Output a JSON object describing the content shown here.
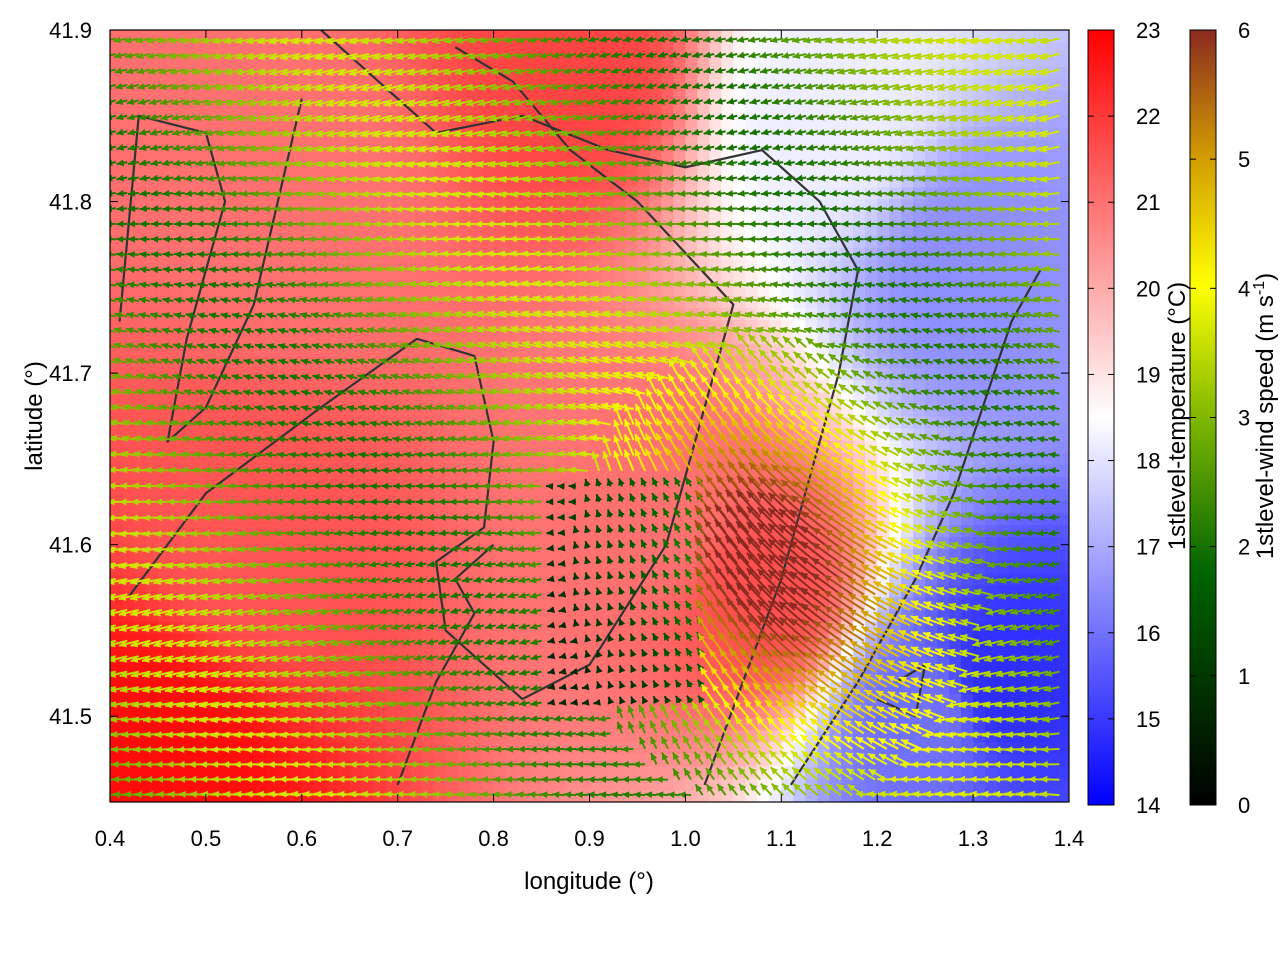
{
  "chart_data": {
    "type": "heatmap",
    "xlabel": "longitude (°)",
    "ylabel": "latitude (°)",
    "xlim": [
      0.4,
      1.4
    ],
    "ylim": [
      41.45,
      41.9
    ],
    "x_ticks": [
      "0.4",
      "0.5",
      "0.6",
      "0.7",
      "0.8",
      "0.9",
      "1.0",
      "1.1",
      "1.2",
      "1.3",
      "1.4"
    ],
    "y_ticks": [
      "41.5",
      "41.6",
      "41.7",
      "41.8",
      "41.9"
    ],
    "grid": false,
    "temperature": {
      "label": "1stlevel-temperature (°C)",
      "range": [
        14,
        23
      ],
      "ticks": [
        "14",
        "15",
        "16",
        "17",
        "18",
        "19",
        "20",
        "21",
        "22",
        "23"
      ],
      "colors": [
        "#0000ff",
        "#ffffff",
        "#ff0000"
      ],
      "field_samples": [
        {
          "lon": 0.45,
          "lat": 41.48,
          "value": 22.8
        },
        {
          "lon": 0.55,
          "lat": 41.6,
          "value": 21.5
        },
        {
          "lon": 0.6,
          "lat": 41.8,
          "value": 21.0
        },
        {
          "lon": 0.88,
          "lat": 41.88,
          "value": 21.8
        },
        {
          "lon": 0.97,
          "lat": 41.62,
          "value": 21.0
        },
        {
          "lon": 1.08,
          "lat": 41.57,
          "value": 21.6
        },
        {
          "lon": 1.15,
          "lat": 41.85,
          "value": 18.2
        },
        {
          "lon": 1.3,
          "lat": 41.76,
          "value": 16.5
        },
        {
          "lon": 1.33,
          "lat": 41.52,
          "value": 14.8
        },
        {
          "lon": 1.25,
          "lat": 41.5,
          "value": 16.0
        }
      ]
    },
    "wind": {
      "label": "1stlevel-wind speed (m s-1)",
      "label_main": "1stlevel-wind speed (m s",
      "label_sup": "-1",
      "label_end": ")",
      "range": [
        0,
        6
      ],
      "ticks": [
        "0",
        "1",
        "2",
        "3",
        "4",
        "5",
        "6"
      ],
      "colors": [
        "#000000",
        "#006400",
        "#7fb800",
        "#ffff00",
        "#d4a000",
        "#8b2a20"
      ],
      "dominant_direction": "from east (arrows point west)",
      "max_region": {
        "lon": 1.1,
        "lat": 41.58,
        "value": 5.8
      }
    },
    "coastline_color": "#333333"
  }
}
